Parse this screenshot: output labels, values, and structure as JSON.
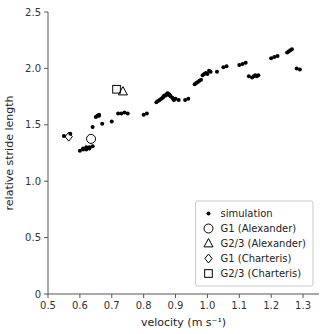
{
  "chart_data": {
    "type": "scatter",
    "xlabel": "velocity (m s⁻¹)",
    "ylabel": "relative stride length",
    "xlim": [
      0.5,
      1.35
    ],
    "ylim": [
      0.0,
      2.5
    ],
    "xticks": [
      0.5,
      0.6,
      0.7,
      0.8,
      0.9,
      {
        "value": 1.0,
        "label": "1.0"
      },
      1.1,
      1.2,
      1.3
    ],
    "yticks": [
      0,
      0.5,
      {
        "value": 1.0,
        "label": "1.0"
      },
      1.5,
      {
        "value": 2.0,
        "label": "2.0"
      },
      2.5
    ],
    "grid": false,
    "legend": "lower right",
    "series": [
      {
        "name": "simulation",
        "color": "black",
        "marker": "circle",
        "x": [
          0.55,
          0.57,
          0.6,
          0.61,
          0.61,
          0.62,
          0.62,
          0.63,
          0.63,
          0.64,
          0.64,
          0.65,
          0.655,
          0.66,
          0.66,
          0.67,
          0.7,
          0.72,
          0.73,
          0.74,
          0.75,
          0.8,
          0.81,
          0.84,
          0.845,
          0.85,
          0.855,
          0.86,
          0.862,
          0.865,
          0.87,
          0.872,
          0.875,
          0.88,
          0.882,
          0.885,
          0.89,
          0.892,
          0.895,
          0.9,
          0.91,
          0.93,
          0.94,
          0.96,
          0.965,
          0.97,
          0.975,
          0.98,
          0.985,
          0.99,
          0.995,
          1.0,
          1.005,
          1.01,
          1.03,
          1.05,
          1.06,
          1.1,
          1.11,
          1.12,
          1.13,
          1.14,
          1.145,
          1.15,
          1.155,
          1.16,
          1.2,
          1.21,
          1.22,
          1.25,
          1.255,
          1.26,
          1.265,
          1.28,
          1.29
        ],
        "values": [
          1.4,
          1.42,
          1.27,
          1.28,
          1.29,
          1.3,
          1.28,
          1.3,
          1.29,
          1.31,
          1.48,
          1.57,
          1.58,
          1.58,
          1.59,
          1.51,
          1.53,
          1.6,
          1.6,
          1.61,
          1.6,
          1.59,
          1.6,
          1.7,
          1.71,
          1.72,
          1.73,
          1.74,
          1.75,
          1.76,
          1.76,
          1.77,
          1.78,
          1.77,
          1.76,
          1.75,
          1.74,
          1.73,
          1.72,
          1.73,
          1.72,
          1.72,
          1.73,
          1.86,
          1.87,
          1.88,
          1.89,
          1.9,
          1.94,
          1.95,
          1.96,
          1.95,
          1.98,
          1.97,
          1.97,
          2.01,
          2.02,
          2.03,
          2.04,
          2.05,
          1.93,
          1.92,
          1.93,
          1.94,
          1.93,
          1.94,
          2.09,
          2.1,
          2.11,
          2.14,
          2.15,
          2.16,
          2.17,
          2.0,
          1.99
        ]
      },
      {
        "name": "G1 (Alexander)",
        "color": "black",
        "marker": "circle-open",
        "x": [
          0.635
        ],
        "values": [
          1.375
        ]
      },
      {
        "name": "G2/3 (Alexander)",
        "color": "black",
        "marker": "triangle-open",
        "x": [
          0.735
        ],
        "values": [
          1.795
        ]
      },
      {
        "name": "G1 (Charteris)",
        "color": "black",
        "marker": "diamond-open",
        "x": [
          0.565
        ],
        "values": [
          1.395
        ]
      },
      {
        "name": "G2/3 (Charteris)",
        "color": "black",
        "marker": "square-open",
        "x": [
          0.715
        ],
        "values": [
          1.815
        ]
      }
    ]
  }
}
